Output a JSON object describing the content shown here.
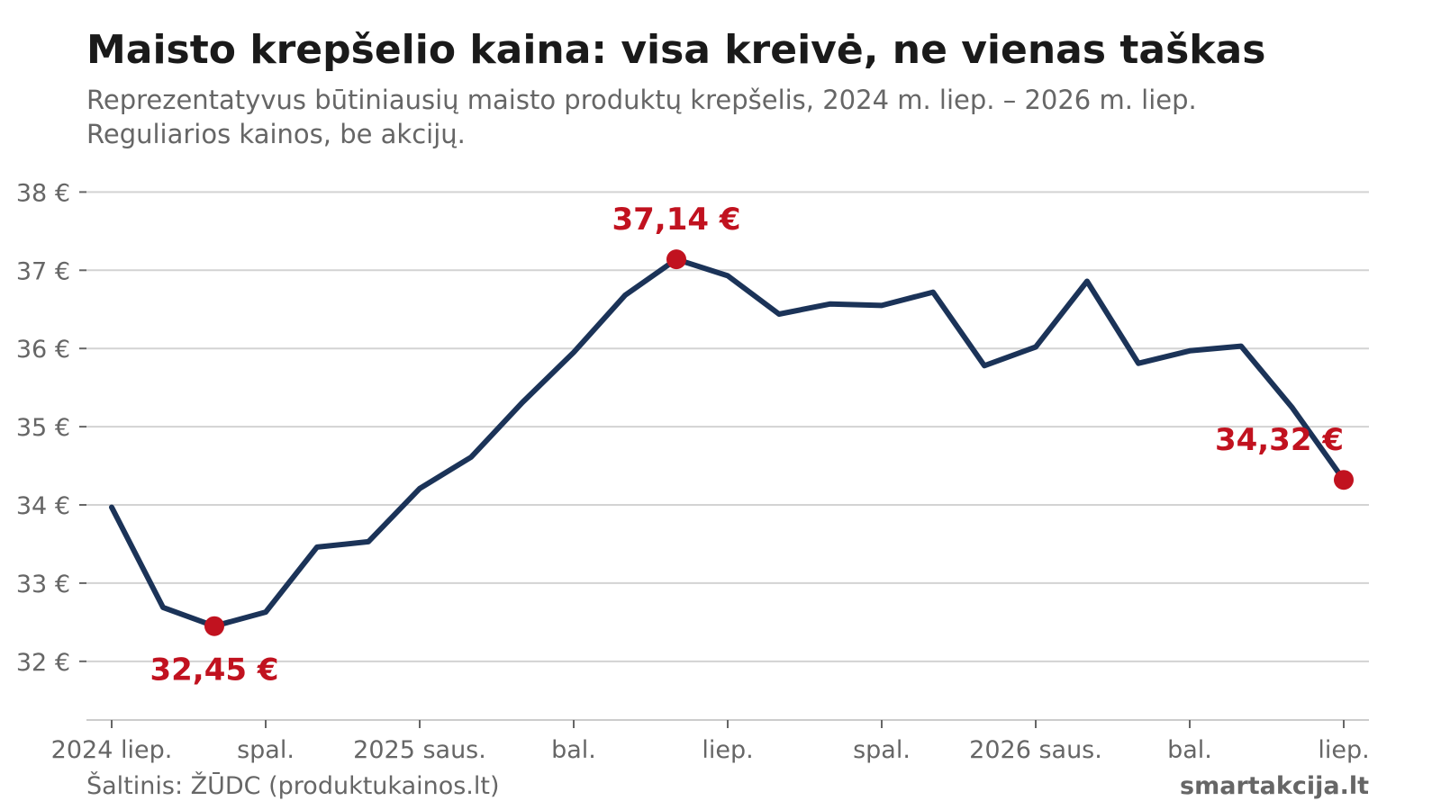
{
  "colors": {
    "line": "#1b3358",
    "highlight": "#c1121f",
    "grid": "#d3d3d3",
    "axis": "#cccccc",
    "muted_text": "#666666",
    "title_text": "#1a1a1a"
  },
  "source": "Šaltinis: ŽŪDC (produktukainos.lt)",
  "brand": "smartakcija.lt",
  "chart_data": {
    "type": "line",
    "title": "Maisto krepšelio kaina: visa kreivė, ne vienas taškas",
    "subtitle_lines": [
      "Reprezentatyvus būtiniausių maisto produktų krepšelis, 2024 m. liep. – 2026 m. liep.",
      "Reguliarios kainos, be akcijų."
    ],
    "xlabel": "",
    "ylabel": "",
    "grid": true,
    "x": [
      "2024-07",
      "2024-08",
      "2024-09",
      "2024-10",
      "2024-11",
      "2024-12",
      "2025-01",
      "2025-02",
      "2025-03",
      "2025-04",
      "2025-05",
      "2025-06",
      "2025-07",
      "2025-08",
      "2025-09",
      "2025-10",
      "2025-11",
      "2025-12",
      "2026-01",
      "2026-02",
      "2026-03",
      "2026-04",
      "2026-05",
      "2026-06",
      "2026-07"
    ],
    "series": [
      {
        "values": [
          33.97,
          32.69,
          32.45,
          32.63,
          33.46,
          33.53,
          34.21,
          34.61,
          35.31,
          35.95,
          36.68,
          37.14,
          36.93,
          36.44,
          36.57,
          36.55,
          36.72,
          35.78,
          36.02,
          36.86,
          35.81,
          35.97,
          36.03,
          35.24,
          34.32
        ]
      }
    ],
    "x_ticks": [
      {
        "x": "2024-07",
        "label": "2024 liep."
      },
      {
        "x": "2024-10",
        "label": "spal."
      },
      {
        "x": "2025-01",
        "label": "2025 saus."
      },
      {
        "x": "2025-04",
        "label": "bal."
      },
      {
        "x": "2025-07",
        "label": "liep."
      },
      {
        "x": "2025-10",
        "label": "spal."
      },
      {
        "x": "2026-01",
        "label": "2026 saus."
      },
      {
        "x": "2026-04",
        "label": "bal."
      },
      {
        "x": "2026-07",
        "label": "liep."
      }
    ],
    "y_ticks": [
      {
        "value": 32,
        "label": "32 €"
      },
      {
        "value": 33,
        "label": "33 €"
      },
      {
        "value": 34,
        "label": "34 €"
      },
      {
        "value": 35,
        "label": "35 €"
      },
      {
        "value": 36,
        "label": "36 €"
      },
      {
        "value": 37,
        "label": "37 €"
      },
      {
        "value": 38,
        "label": "38 €"
      }
    ],
    "ylim": [
      31.25,
      38.2
    ],
    "annotations": [
      {
        "x": "2024-09",
        "y": 32.45,
        "label": "32,45 €",
        "placement": "below"
      },
      {
        "x": "2025-06",
        "y": 37.14,
        "label": "37,14 €",
        "placement": "above"
      },
      {
        "x": "2026-07",
        "y": 34.32,
        "label": "34,32 €",
        "placement": "above-left"
      }
    ]
  }
}
